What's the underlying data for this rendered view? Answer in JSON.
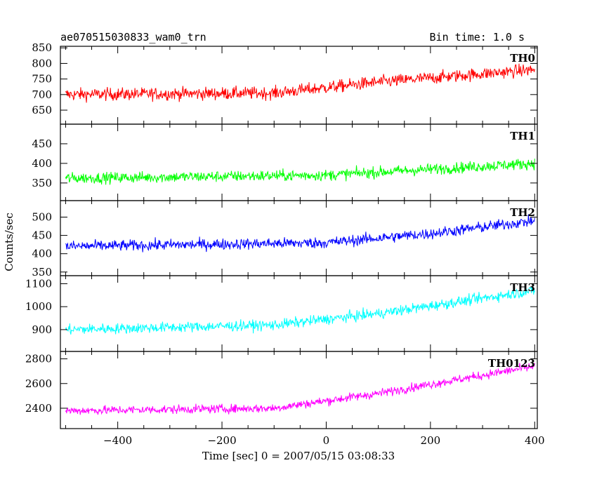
{
  "header": {
    "title": "ae070515030833_wam0_trn",
    "bin_time": "Bin time: 1.0 s"
  },
  "chart_data": {
    "type": "line",
    "xlabel": "Time [sec] 0 = 2007/05/15 03:08:33",
    "ylabel": "Counts/sec",
    "xlim": [
      -510,
      405
    ],
    "x_ticks": [
      -400,
      -200,
      0,
      200,
      400
    ],
    "x_tick_labels": [
      "−400",
      "−200",
      "0",
      "200",
      "400"
    ],
    "x_range": [
      -500,
      400
    ],
    "bin_time": 1.0,
    "panels": [
      {
        "name": "TH0",
        "color": "#ff0000",
        "ylim": [
          605,
          855
        ],
        "yticks": [
          650,
          700,
          750,
          800,
          850
        ],
        "ytick_labels": [
          "650",
          "700",
          "750",
          "800",
          "850"
        ],
        "trend": [
          [
            -500,
            700
          ],
          [
            -100,
            705
          ],
          [
            100,
            740
          ],
          [
            400,
            780
          ]
        ],
        "noise": 40
      },
      {
        "name": "TH1",
        "color": "#00ff00",
        "ylim": [
          305,
          500
        ],
        "yticks": [
          350,
          400,
          450
        ],
        "ytick_labels": [
          "350",
          "400",
          "450"
        ],
        "trend": [
          [
            -500,
            362
          ],
          [
            0,
            370
          ],
          [
            200,
            385
          ],
          [
            400,
            400
          ]
        ],
        "noise": 28
      },
      {
        "name": "TH2",
        "color": "#0000ff",
        "ylim": [
          340,
          545
        ],
        "yticks": [
          350,
          400,
          450,
          500
        ],
        "ytick_labels": [
          "350",
          "400",
          "450",
          "500"
        ],
        "trend": [
          [
            -500,
            420
          ],
          [
            0,
            430
          ],
          [
            200,
            455
          ],
          [
            400,
            490
          ]
        ],
        "noise": 30
      },
      {
        "name": "TH3",
        "color": "#00ffff",
        "ylim": [
          805,
          1135
        ],
        "yticks": [
          900,
          1000,
          1100
        ],
        "ytick_labels": [
          "900",
          "1000",
          "1100"
        ],
        "trend": [
          [
            -500,
            900
          ],
          [
            -100,
            920
          ],
          [
            100,
            970
          ],
          [
            400,
            1070
          ]
        ],
        "noise": 45
      },
      {
        "name": "TH0123",
        "color": "#ff00ff",
        "ylim": [
          2235,
          2860
        ],
        "yticks": [
          2400,
          2600,
          2800
        ],
        "ytick_labels": [
          "2400",
          "2600",
          "2800"
        ],
        "trend": [
          [
            -500,
            2380
          ],
          [
            -100,
            2400
          ],
          [
            100,
            2520
          ],
          [
            400,
            2740
          ]
        ],
        "noise": 70
      }
    ]
  }
}
